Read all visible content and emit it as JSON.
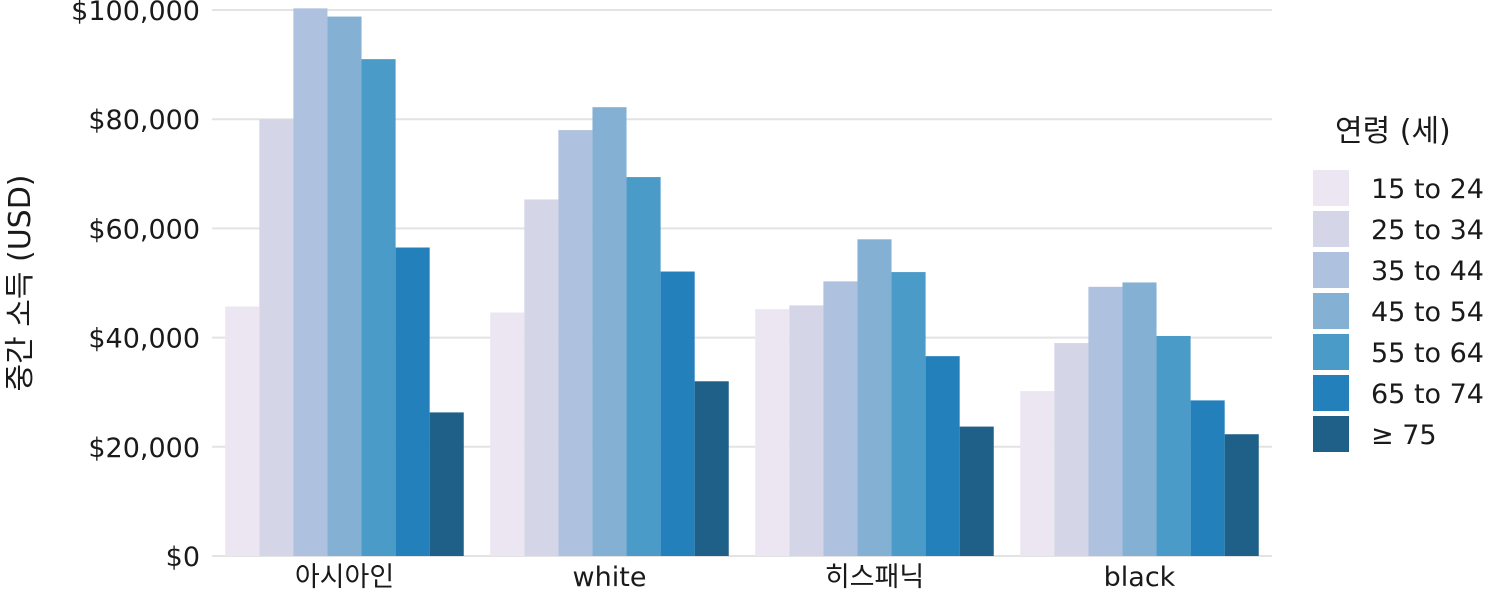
{
  "chart_data": {
    "type": "bar",
    "title": "",
    "xlabel": "",
    "ylabel": "중간 소득 (USD)",
    "ylim": [
      0,
      100000
    ],
    "y_ticks": [
      0,
      20000,
      40000,
      60000,
      80000,
      100000
    ],
    "y_tick_labels": [
      "$0",
      "$20,000",
      "$40,000",
      "$60,000",
      "$80,000",
      "$100,000"
    ],
    "grid": true,
    "categories": [
      "아시아인",
      "white",
      "히스패닉",
      "black"
    ],
    "legend": {
      "title": "연령 (세)",
      "placement": "right"
    },
    "series": [
      {
        "name": "15 to 24",
        "color": "#ebe6f2",
        "values": [
          45700,
          44600,
          45200,
          30200
        ]
      },
      {
        "name": "25 to 34",
        "color": "#d5d5e8",
        "values": [
          80000,
          65300,
          45900,
          39000
        ]
      },
      {
        "name": "35 to 44",
        "color": "#aec1df",
        "values": [
          100300,
          78000,
          50300,
          49300
        ]
      },
      {
        "name": "45 to 54",
        "color": "#84b0d4",
        "values": [
          98800,
          82200,
          58000,
          50100
        ]
      },
      {
        "name": "55 to 64",
        "color": "#4b9bc8",
        "values": [
          91000,
          69400,
          52000,
          40300
        ]
      },
      {
        "name": "65 to 74",
        "color": "#2380bb",
        "values": [
          56500,
          52100,
          36600,
          28500
        ]
      },
      {
        "name": "≥ 75",
        "color": "#1f6089",
        "values": [
          26300,
          32000,
          23700,
          22300
        ]
      }
    ]
  }
}
